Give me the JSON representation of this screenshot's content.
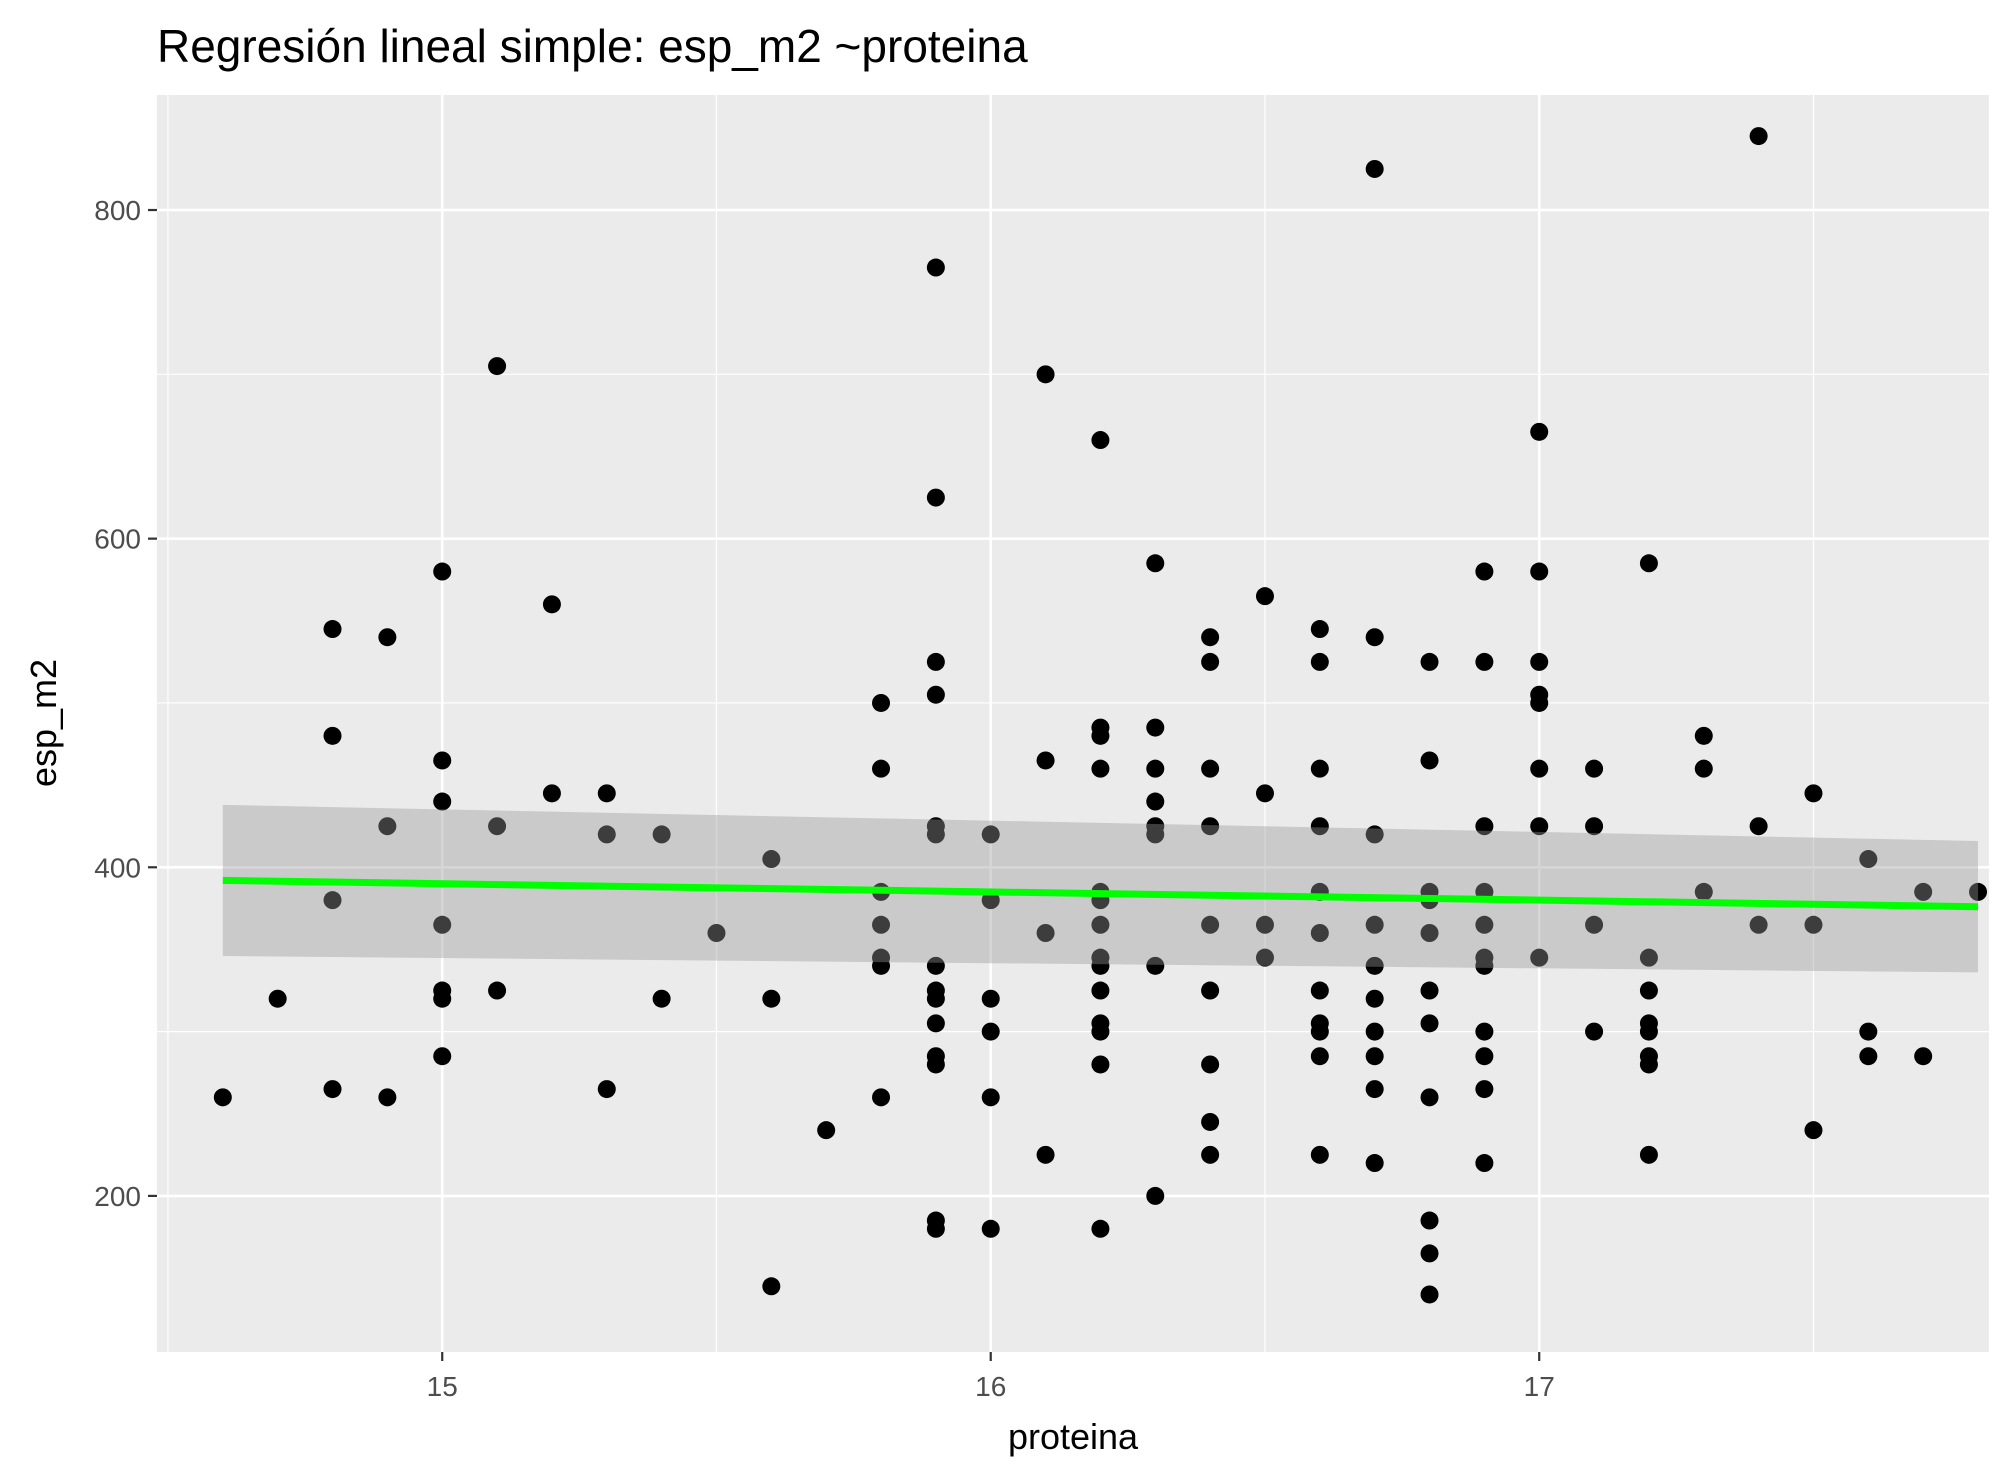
{
  "chart_data": {
    "type": "scatter",
    "title": "Regresión lineal simple:  esp_m2 ~proteina",
    "xlabel": "proteina",
    "ylabel": "esp_m2",
    "xlim": [
      14.48,
      17.82
    ],
    "ylim": [
      105,
      870
    ],
    "x_ticks": [
      15,
      16,
      17
    ],
    "x_tick_labels": [
      "15",
      "16",
      "17"
    ],
    "y_ticks": [
      200,
      400,
      600,
      800
    ],
    "y_tick_labels": [
      "200",
      "400",
      "600",
      "800"
    ],
    "grid": true,
    "legend": "none",
    "colors": {
      "panel": "#ebebeb",
      "grid": "#ffffff",
      "points": "#000000",
      "fit_line": "#00ff00",
      "confidence_band": "#c2c2c2"
    },
    "regression": {
      "x": [
        14.6,
        17.8
      ],
      "fit": [
        392,
        376
      ],
      "lower": [
        346,
        336
      ],
      "upper": [
        438,
        416
      ]
    },
    "points": [
      [
        14.6,
        260
      ],
      [
        14.7,
        320
      ],
      [
        14.8,
        545
      ],
      [
        14.8,
        480
      ],
      [
        14.8,
        380
      ],
      [
        14.8,
        265
      ],
      [
        14.9,
        540
      ],
      [
        14.9,
        425
      ],
      [
        14.9,
        260
      ],
      [
        15.0,
        580
      ],
      [
        15.0,
        465
      ],
      [
        15.0,
        440
      ],
      [
        15.0,
        365
      ],
      [
        15.0,
        325
      ],
      [
        15.0,
        320
      ],
      [
        15.0,
        285
      ],
      [
        15.1,
        705
      ],
      [
        15.1,
        425
      ],
      [
        15.1,
        325
      ],
      [
        15.2,
        560
      ],
      [
        15.2,
        445
      ],
      [
        15.3,
        445
      ],
      [
        15.3,
        420
      ],
      [
        15.3,
        265
      ],
      [
        15.4,
        420
      ],
      [
        15.4,
        320
      ],
      [
        15.5,
        360
      ],
      [
        15.6,
        405
      ],
      [
        15.6,
        320
      ],
      [
        15.6,
        145
      ],
      [
        15.7,
        240
      ],
      [
        15.8,
        500
      ],
      [
        15.8,
        460
      ],
      [
        15.8,
        385
      ],
      [
        15.8,
        365
      ],
      [
        15.8,
        345
      ],
      [
        15.8,
        340
      ],
      [
        15.8,
        260
      ],
      [
        15.9,
        765
      ],
      [
        15.9,
        625
      ],
      [
        15.9,
        525
      ],
      [
        15.9,
        505
      ],
      [
        15.9,
        425
      ],
      [
        15.9,
        420
      ],
      [
        15.9,
        340
      ],
      [
        15.9,
        325
      ],
      [
        15.9,
        320
      ],
      [
        15.9,
        305
      ],
      [
        15.9,
        285
      ],
      [
        15.9,
        280
      ],
      [
        15.9,
        185
      ],
      [
        15.9,
        180
      ],
      [
        16.0,
        420
      ],
      [
        16.0,
        380
      ],
      [
        16.0,
        320
      ],
      [
        16.0,
        300
      ],
      [
        16.0,
        260
      ],
      [
        16.0,
        180
      ],
      [
        16.1,
        700
      ],
      [
        16.1,
        465
      ],
      [
        16.1,
        360
      ],
      [
        16.1,
        225
      ],
      [
        16.2,
        660
      ],
      [
        16.2,
        485
      ],
      [
        16.2,
        480
      ],
      [
        16.2,
        460
      ],
      [
        16.2,
        385
      ],
      [
        16.2,
        380
      ],
      [
        16.2,
        365
      ],
      [
        16.2,
        345
      ],
      [
        16.2,
        340
      ],
      [
        16.2,
        325
      ],
      [
        16.2,
        305
      ],
      [
        16.2,
        300
      ],
      [
        16.2,
        280
      ],
      [
        16.2,
        180
      ],
      [
        16.3,
        585
      ],
      [
        16.3,
        485
      ],
      [
        16.3,
        460
      ],
      [
        16.3,
        440
      ],
      [
        16.3,
        425
      ],
      [
        16.3,
        420
      ],
      [
        16.3,
        340
      ],
      [
        16.3,
        200
      ],
      [
        16.4,
        540
      ],
      [
        16.4,
        525
      ],
      [
        16.4,
        460
      ],
      [
        16.4,
        425
      ],
      [
        16.4,
        365
      ],
      [
        16.4,
        325
      ],
      [
        16.4,
        280
      ],
      [
        16.4,
        245
      ],
      [
        16.4,
        225
      ],
      [
        16.5,
        565
      ],
      [
        16.5,
        445
      ],
      [
        16.5,
        365
      ],
      [
        16.5,
        345
      ],
      [
        16.6,
        545
      ],
      [
        16.6,
        525
      ],
      [
        16.6,
        460
      ],
      [
        16.6,
        425
      ],
      [
        16.6,
        385
      ],
      [
        16.6,
        360
      ],
      [
        16.6,
        325
      ],
      [
        16.6,
        305
      ],
      [
        16.6,
        300
      ],
      [
        16.6,
        285
      ],
      [
        16.6,
        225
      ],
      [
        16.7,
        825
      ],
      [
        16.7,
        540
      ],
      [
        16.7,
        420
      ],
      [
        16.7,
        365
      ],
      [
        16.7,
        340
      ],
      [
        16.7,
        320
      ],
      [
        16.7,
        300
      ],
      [
        16.7,
        285
      ],
      [
        16.7,
        265
      ],
      [
        16.7,
        220
      ],
      [
        16.8,
        525
      ],
      [
        16.8,
        465
      ],
      [
        16.8,
        385
      ],
      [
        16.8,
        380
      ],
      [
        16.8,
        360
      ],
      [
        16.8,
        325
      ],
      [
        16.8,
        305
      ],
      [
        16.8,
        260
      ],
      [
        16.8,
        185
      ],
      [
        16.8,
        165
      ],
      [
        16.8,
        140
      ],
      [
        16.9,
        580
      ],
      [
        16.9,
        525
      ],
      [
        16.9,
        425
      ],
      [
        16.9,
        385
      ],
      [
        16.9,
        365
      ],
      [
        16.9,
        345
      ],
      [
        16.9,
        340
      ],
      [
        16.9,
        300
      ],
      [
        16.9,
        285
      ],
      [
        16.9,
        265
      ],
      [
        16.9,
        220
      ],
      [
        17.0,
        665
      ],
      [
        17.0,
        580
      ],
      [
        17.0,
        525
      ],
      [
        17.0,
        505
      ],
      [
        17.0,
        500
      ],
      [
        17.0,
        460
      ],
      [
        17.0,
        425
      ],
      [
        17.0,
        345
      ],
      [
        17.1,
        460
      ],
      [
        17.1,
        425
      ],
      [
        17.1,
        365
      ],
      [
        17.1,
        300
      ],
      [
        17.2,
        585
      ],
      [
        17.2,
        345
      ],
      [
        17.2,
        325
      ],
      [
        17.2,
        305
      ],
      [
        17.2,
        300
      ],
      [
        17.2,
        285
      ],
      [
        17.2,
        280
      ],
      [
        17.2,
        225
      ],
      [
        17.3,
        480
      ],
      [
        17.3,
        460
      ],
      [
        17.3,
        385
      ],
      [
        17.4,
        845
      ],
      [
        17.4,
        425
      ],
      [
        17.4,
        365
      ],
      [
        17.5,
        445
      ],
      [
        17.5,
        365
      ],
      [
        17.5,
        240
      ],
      [
        17.6,
        405
      ],
      [
        17.6,
        300
      ],
      [
        17.6,
        285
      ],
      [
        17.7,
        385
      ],
      [
        17.7,
        285
      ],
      [
        17.8,
        385
      ]
    ]
  }
}
